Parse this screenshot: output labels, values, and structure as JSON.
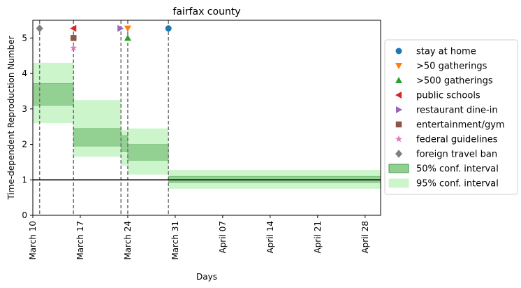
{
  "chart_data": {
    "type": "line",
    "title": "fairfax county",
    "xlabel": "Days",
    "ylabel": "Time-dependent Reproduction Number",
    "x_start": "2020-03-10",
    "x_end": "2020-04-02",
    "ylim": [
      0,
      5.5
    ],
    "yticks": [
      0,
      1,
      2,
      3,
      4,
      5
    ],
    "xticks": [
      {
        "date": "2020-03-10",
        "label": "March 10"
      },
      {
        "date": "2020-03-17",
        "label": "March 17"
      },
      {
        "date": "2020-03-24",
        "label": "March 24"
      },
      {
        "date": "2020-03-31",
        "label": "March 31"
      },
      {
        "date": "2020-04-07",
        "label": "April 07"
      },
      {
        "date": "2020-04-14",
        "label": "April 14"
      },
      {
        "date": "2020-04-21",
        "label": "April 21"
      },
      {
        "date": "2020-04-28",
        "label": "April 28"
      }
    ],
    "reference_line": 1,
    "ci95": [
      {
        "x0": "2020-03-10",
        "x1": "2020-03-16",
        "lo": 2.6,
        "hi": 4.3
      },
      {
        "x0": "2020-03-16",
        "x1": "2020-03-23",
        "lo": 1.65,
        "hi": 3.25
      },
      {
        "x0": "2020-03-23",
        "x1": "2020-03-24",
        "lo": 1.4,
        "hi": 2.4
      },
      {
        "x0": "2020-03-24",
        "x1": "2020-03-30",
        "lo": 1.15,
        "hi": 2.45
      },
      {
        "x0": "2020-03-30",
        "x1": "2020-05-02",
        "lo": 0.75,
        "hi": 1.28
      }
    ],
    "ci50": [
      {
        "x0": "2020-03-10",
        "x1": "2020-03-16",
        "lo": 3.1,
        "hi": 3.72
      },
      {
        "x0": "2020-03-16",
        "x1": "2020-03-23",
        "lo": 1.95,
        "hi": 2.45
      },
      {
        "x0": "2020-03-23",
        "x1": "2020-03-24",
        "lo": 1.8,
        "hi": 2.25
      },
      {
        "x0": "2020-03-24",
        "x1": "2020-03-30",
        "lo": 1.55,
        "hi": 2.0
      },
      {
        "x0": "2020-03-30",
        "x1": "2020-05-02",
        "lo": 0.92,
        "hi": 1.1
      }
    ],
    "interventions": [
      {
        "name": "stay at home",
        "date": "2020-03-30",
        "y": 5.27,
        "marker": "circle",
        "color": "#1f77b4"
      },
      {
        "name": ">50 gatherings",
        "date": "2020-03-24",
        "y": 5.27,
        "marker": "triangle-down",
        "color": "#ff7f0e"
      },
      {
        "name": ">500 gatherings",
        "date": "2020-03-24",
        "y": 5.0,
        "marker": "triangle-up",
        "color": "#2ca02c"
      },
      {
        "name": "public schools",
        "date": "2020-03-16",
        "y": 5.27,
        "marker": "triangle-left",
        "color": "#d62728"
      },
      {
        "name": "restaurant dine-in",
        "date": "2020-03-23",
        "y": 5.27,
        "marker": "triangle-right",
        "color": "#9467bd"
      },
      {
        "name": "entertainment/gym",
        "date": "2020-03-16",
        "y": 5.0,
        "marker": "square",
        "color": "#8c564b"
      },
      {
        "name": "federal guidelines",
        "date": "2020-03-16",
        "y": 4.72,
        "marker": "star",
        "color": "#e377c2"
      },
      {
        "name": "foreign travel ban",
        "date": "2020-03-11",
        "y": 5.27,
        "marker": "diamond",
        "color": "#7f7f7f"
      }
    ],
    "legend_position": "right",
    "legend_extra": [
      {
        "name": "50% conf. interval",
        "color": "#8fcf8f",
        "border": "#4a9a4a"
      },
      {
        "name": "95% conf. interval",
        "color": "#ccf5cc",
        "border": "#ccf5cc"
      }
    ],
    "colors": {
      "ci50": "#8fcf8f",
      "ci95": "#ccf5cc",
      "vline": "#707070",
      "ref": "#000000"
    }
  }
}
